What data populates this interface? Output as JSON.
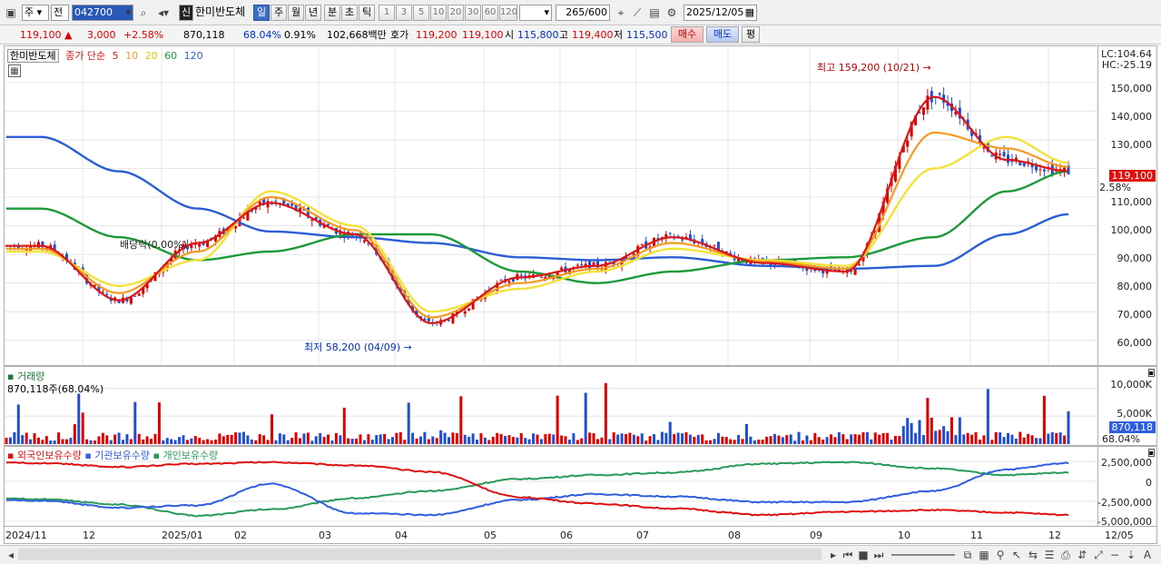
{
  "toolbar": {
    "market_select": "주",
    "period_type": "전",
    "code": "042700",
    "credit_badge": "신",
    "stock_name": "한미반도체",
    "period_buttons": [
      "일",
      "주",
      "월",
      "년",
      "분",
      "초",
      "틱"
    ],
    "period_selected": "일",
    "interval_buttons": [
      "1",
      "3",
      "5",
      "10",
      "20",
      "30",
      "60",
      "120"
    ],
    "count_value": "265",
    "count_max": "/600",
    "date": "2025/12/05"
  },
  "price_bar": {
    "price": "119,100",
    "change": "3,000",
    "change_pct": "+2.58%",
    "volume": "870,118",
    "volume_ratio": "68.04%",
    "turnover_rate": "0.91%",
    "trade_value": "102,668백만",
    "quote_label": "호가",
    "ask": "119,200",
    "bid": "119,100",
    "open_label": "시",
    "open": "115,800",
    "high_label": "고",
    "high": "119,400",
    "low_label": "저",
    "low": "115,500",
    "buy_label": "매수",
    "sell_label": "매도",
    "even_label": "평"
  },
  "price_panel": {
    "legend_name": "한미반도체",
    "legend_close": "종가 단순",
    "ma_periods": [
      "5",
      "10",
      "20",
      "60",
      "120"
    ],
    "lc_label": "LC:104.64",
    "hc_label": "HC:-25.19",
    "y_ticks": [
      "150,000",
      "140,000",
      "130,000",
      "120,000",
      "110,000",
      "100,000",
      "90,000",
      "80,000",
      "70,000",
      "60,000"
    ],
    "current_tag": "119,100",
    "change_tag": "2.58%",
    "high_note": "최고 159,200 (10/21)",
    "low_note": "최저 58,200 (04/09)",
    "dividend_note": "배당락(0.00%)"
  },
  "volume_panel": {
    "title": "거래량",
    "value": "870,118주(68.04%)",
    "y_ticks": [
      "10,000K",
      "5,000K"
    ],
    "current_tag": "870,118",
    "ratio_tag": "68.04%"
  },
  "holding_panel": {
    "series_labels": [
      "외국인보유수량",
      "기관보유수량",
      "개인보유수량"
    ],
    "y_ticks": [
      "2,500,000",
      "0",
      "-2,500,000",
      "-5,000,000"
    ]
  },
  "x_axis": {
    "labels": [
      "2024/11",
      "12",
      "2025/01",
      "02",
      "03",
      "04",
      "05",
      "06",
      "07",
      "08",
      "09",
      "10",
      "11",
      "12",
      "12/05"
    ]
  },
  "colors": {
    "up": "#e00000",
    "down": "#1f4fd0",
    "ma5": "#d81818",
    "ma10": "#f59a20",
    "ma20": "#f2e23a",
    "ma60": "#1c9a3a",
    "ma120": "#2b5ed6",
    "foreign": "#e01010",
    "institution": "#2f5fe0",
    "individual": "#2a9a5a"
  },
  "chart_data": {
    "type": "line",
    "title": "한미반도체",
    "x": [
      "2024/11",
      "12",
      "2025/01",
      "02",
      "03",
      "04",
      "05",
      "06",
      "07",
      "08",
      "09",
      "10",
      "11",
      "12"
    ],
    "series": [
      {
        "name": "종가 단순 5",
        "values": [
          93000,
          74000,
          94000,
          108000,
          97000,
          66000,
          82000,
          86000,
          96000,
          87000,
          84000,
          145000,
          123000,
          119100
        ]
      },
      {
        "name": "종가 단순 20",
        "values": [
          91000,
          79000,
          88000,
          112000,
          100000,
          70000,
          78000,
          84000,
          92000,
          88000,
          86000,
          120000,
          131000,
          122000
        ]
      },
      {
        "name": "종가 단순 60",
        "values": [
          106000,
          96000,
          88000,
          91000,
          97000,
          97000,
          84000,
          80000,
          84000,
          88000,
          89000,
          96000,
          112000,
          119000
        ]
      },
      {
        "name": "종가 단순 120",
        "values": [
          131000,
          119000,
          106000,
          98000,
          96000,
          94000,
          89000,
          88000,
          89000,
          86000,
          85000,
          86000,
          97000,
          104000
        ]
      }
    ],
    "volume_series": {
      "name": "거래량",
      "unit": "K",
      "ylim": [
        0,
        13000
      ]
    },
    "ylim": [
      52000,
      162000
    ],
    "annotations": [
      "최고 159,200 (10/21)",
      "최저 58,200 (04/09)",
      "배당락(0.00%)"
    ],
    "grid": true
  }
}
